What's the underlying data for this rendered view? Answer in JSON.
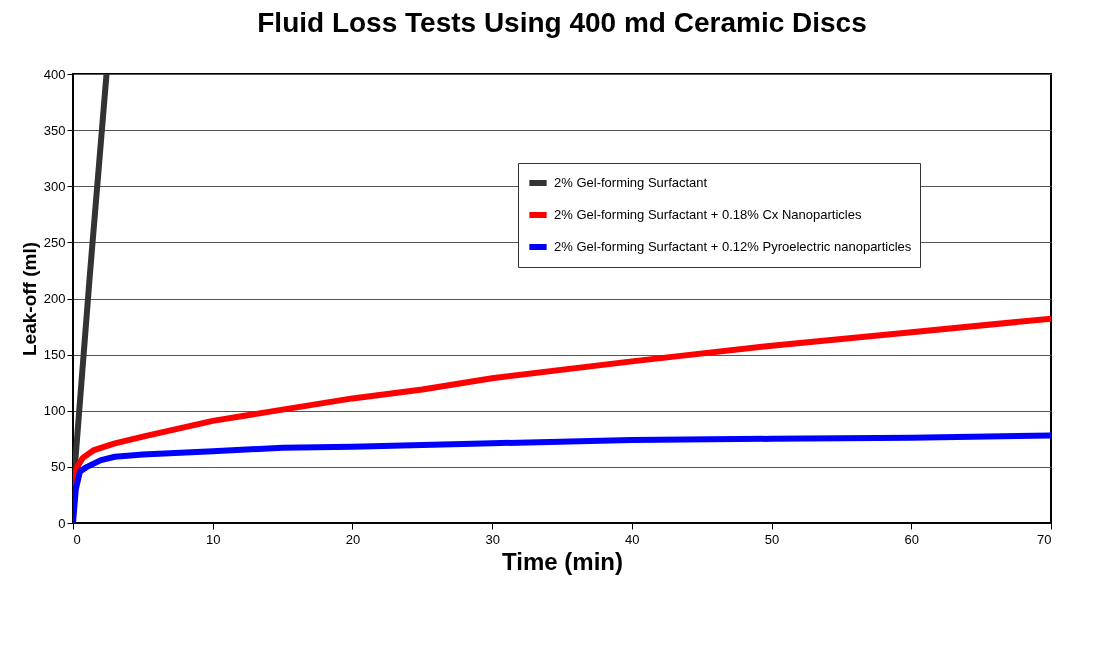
{
  "chart_data": {
    "type": "line",
    "title": "Fluid Loss Tests Using 400 md Ceramic Discs",
    "xlabel": "Time (min)",
    "ylabel": "Leak-off  (ml)",
    "xlim": [
      0,
      70
    ],
    "xticks": [
      0,
      10,
      20,
      30,
      40,
      50,
      60,
      70
    ],
    "ylim": [
      0,
      400
    ],
    "yticks": [
      0,
      50,
      100,
      150,
      200,
      250,
      300,
      350,
      400
    ],
    "grid": "y",
    "legend": "top right",
    "marker": "none",
    "line_style": "solid",
    "series": [
      {
        "name": "2% Gel-forming Surfactant",
        "color": "#333333",
        "x": [
          0.1,
          1.2,
          2.4
        ],
        "values": [
          45,
          220,
          400
        ]
      },
      {
        "name": "2% Gel-forming Surfactant + 0.18% Cx Nanoparticles",
        "color": "#ff0000",
        "x": [
          0,
          0.3,
          0.7,
          1.5,
          3,
          5,
          10,
          15,
          20,
          25,
          30,
          40,
          50,
          60,
          70
        ],
        "values": [
          35,
          50,
          58,
          65,
          71,
          77,
          91,
          101,
          111,
          119,
          129,
          144,
          158,
          170,
          182
        ]
      },
      {
        "name": "2% Gel-forming Surfactant + 0.12% Pyroelectric nanoparticles",
        "color": "#0000ff",
        "x": [
          0,
          0.2,
          0.5,
          1,
          2,
          3,
          5,
          10,
          15,
          20,
          30,
          40,
          50,
          60,
          70
        ],
        "values": [
          0,
          30,
          46,
          50,
          56,
          59,
          61,
          64,
          67,
          68,
          71,
          74,
          75,
          76,
          78
        ]
      }
    ]
  }
}
